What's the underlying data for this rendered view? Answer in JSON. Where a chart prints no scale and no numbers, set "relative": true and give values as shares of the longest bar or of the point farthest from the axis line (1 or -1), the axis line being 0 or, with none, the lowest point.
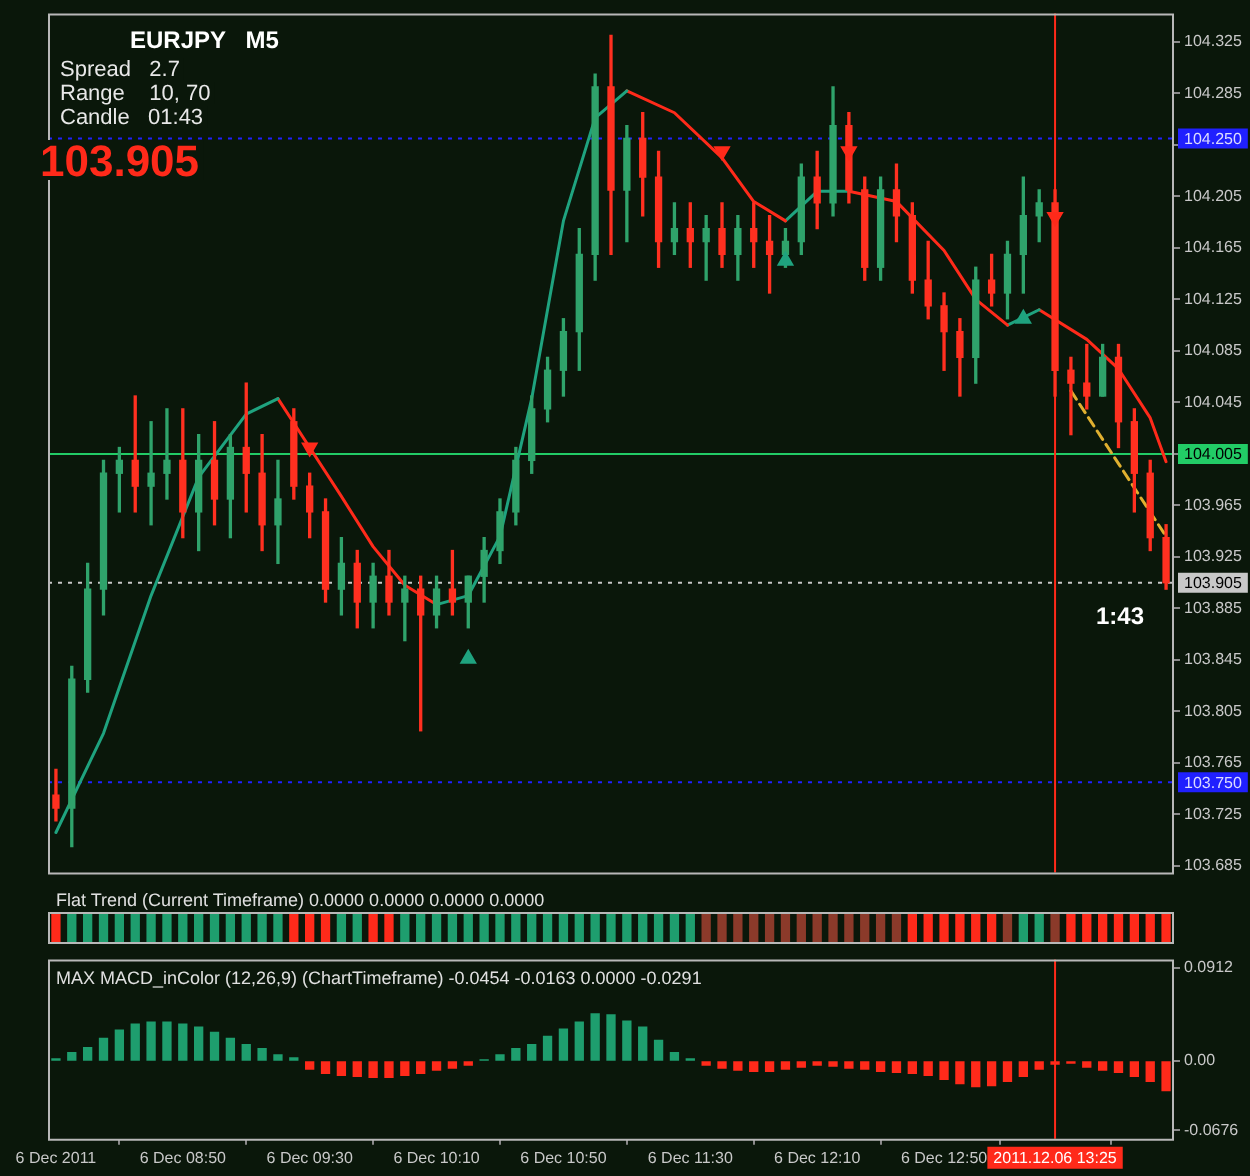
{
  "chart_data": [
    {
      "type": "candlestick",
      "title": "EURJPY   M5",
      "annotations": [
        "Spread   2.7",
        "Range    10, 70",
        "Candle   01:43",
        "103.905",
        "1:43"
      ],
      "categories": [
        "6 Dec 2011",
        null,
        null,
        null,
        null,
        null,
        null,
        null,
        "6 Dec 08:50",
        null,
        null,
        null,
        null,
        null,
        null,
        null,
        "6 Dec 09:30",
        null,
        null,
        null,
        null,
        null,
        null,
        null,
        "6 Dec 10:10",
        null,
        null,
        null,
        null,
        null,
        null,
        null,
        "6 Dec 10:50",
        null,
        null,
        null,
        null,
        null,
        null,
        null,
        "6 Dec 11:30",
        null,
        null,
        null,
        null,
        null,
        null,
        null,
        "6 Dec 12:10",
        null,
        null,
        null,
        null,
        null,
        null,
        null,
        "6 Dec 12:50",
        null,
        null,
        null,
        null,
        null,
        null,
        "2011.12.06 13:25",
        null,
        null,
        null,
        null,
        null,
        null,
        null
      ],
      "ohlc": [
        [
          103.74,
          103.76,
          103.72,
          103.73
        ],
        [
          103.73,
          103.84,
          103.7,
          103.83
        ],
        [
          103.83,
          103.92,
          103.82,
          103.9
        ],
        [
          103.9,
          104.0,
          103.88,
          103.99
        ],
        [
          103.99,
          104.01,
          103.96,
          104.0
        ],
        [
          104.0,
          104.05,
          103.96,
          103.98
        ],
        [
          103.98,
          104.03,
          103.95,
          103.99
        ],
        [
          103.99,
          104.04,
          103.97,
          104.0
        ],
        [
          104.0,
          104.04,
          103.94,
          103.96
        ],
        [
          103.96,
          104.02,
          103.93,
          104.0
        ],
        [
          104.0,
          104.03,
          103.95,
          103.97
        ],
        [
          103.97,
          104.02,
          103.94,
          104.01
        ],
        [
          104.01,
          104.06,
          103.96,
          103.99
        ],
        [
          103.99,
          104.02,
          103.93,
          103.95
        ],
        [
          103.95,
          104.0,
          103.92,
          103.97
        ],
        [
          104.03,
          104.04,
          103.97,
          103.98
        ],
        [
          103.98,
          103.99,
          103.94,
          103.96
        ],
        [
          103.96,
          103.97,
          103.89,
          103.9
        ],
        [
          103.9,
          103.94,
          103.88,
          103.92
        ],
        [
          103.92,
          103.93,
          103.87,
          103.89
        ],
        [
          103.89,
          103.92,
          103.87,
          103.91
        ],
        [
          103.91,
          103.93,
          103.88,
          103.89
        ],
        [
          103.89,
          103.91,
          103.86,
          103.9
        ],
        [
          103.9,
          103.91,
          103.79,
          103.88
        ],
        [
          103.88,
          103.91,
          103.87,
          103.9
        ],
        [
          103.9,
          103.93,
          103.88,
          103.89
        ],
        [
          103.89,
          103.91,
          103.87,
          103.91
        ],
        [
          103.91,
          103.94,
          103.89,
          103.93
        ],
        [
          103.93,
          103.97,
          103.92,
          103.96
        ],
        [
          103.96,
          104.01,
          103.95,
          104.0
        ],
        [
          104.0,
          104.05,
          103.99,
          104.04
        ],
        [
          104.04,
          104.08,
          104.03,
          104.07
        ],
        [
          104.07,
          104.11,
          104.05,
          104.1
        ],
        [
          104.1,
          104.18,
          104.07,
          104.16
        ],
        [
          104.16,
          104.3,
          104.14,
          104.29
        ],
        [
          104.29,
          104.33,
          104.16,
          104.21
        ],
        [
          104.21,
          104.26,
          104.17,
          104.25
        ],
        [
          104.25,
          104.27,
          104.19,
          104.22
        ],
        [
          104.22,
          104.24,
          104.15,
          104.17
        ],
        [
          104.17,
          104.2,
          104.16,
          104.18
        ],
        [
          104.18,
          104.2,
          104.15,
          104.17
        ],
        [
          104.17,
          104.19,
          104.14,
          104.18
        ],
        [
          104.18,
          104.2,
          104.15,
          104.16
        ],
        [
          104.16,
          104.19,
          104.14,
          104.18
        ],
        [
          104.18,
          104.2,
          104.15,
          104.17
        ],
        [
          104.17,
          104.19,
          104.13,
          104.16
        ],
        [
          104.16,
          104.18,
          104.15,
          104.17
        ],
        [
          104.17,
          104.23,
          104.16,
          104.22
        ],
        [
          104.22,
          104.24,
          104.18,
          104.2
        ],
        [
          104.2,
          104.29,
          104.19,
          104.26
        ],
        [
          104.26,
          104.27,
          104.2,
          104.21
        ],
        [
          104.21,
          104.22,
          104.14,
          104.15
        ],
        [
          104.15,
          104.22,
          104.14,
          104.21
        ],
        [
          104.21,
          104.23,
          104.17,
          104.19
        ],
        [
          104.19,
          104.2,
          104.13,
          104.14
        ],
        [
          104.14,
          104.17,
          104.11,
          104.12
        ],
        [
          104.12,
          104.13,
          104.07,
          104.1
        ],
        [
          104.1,
          104.11,
          104.05,
          104.08
        ],
        [
          104.08,
          104.15,
          104.06,
          104.14
        ],
        [
          104.14,
          104.16,
          104.12,
          104.13
        ],
        [
          104.13,
          104.17,
          104.11,
          104.16
        ],
        [
          104.16,
          104.22,
          104.13,
          104.19
        ],
        [
          104.19,
          104.21,
          104.17,
          104.2
        ],
        [
          104.2,
          104.21,
          104.05,
          104.07
        ],
        [
          104.07,
          104.08,
          104.02,
          104.06
        ],
        [
          104.06,
          104.09,
          104.04,
          104.05
        ],
        [
          104.05,
          104.09,
          104.05,
          104.08
        ],
        [
          104.08,
          104.09,
          104.01,
          104.03
        ],
        [
          104.03,
          104.04,
          103.96,
          103.99
        ],
        [
          103.99,
          104.0,
          103.93,
          103.94
        ],
        [
          103.94,
          103.95,
          103.9,
          103.905
        ]
      ],
      "colors": [
        "#ff3020",
        "#2fa36b",
        "#2fa36b",
        "#2fa36b",
        "#2fa36b",
        "#ff3020",
        "#2fa36b",
        "#2fa36b",
        "#ff3020",
        "#2fa36b",
        "#ff3020",
        "#2fa36b",
        "#ff3020",
        "#ff3020",
        "#2fa36b",
        "#ff3020",
        "#ff3020",
        "#ff3020",
        "#2fa36b",
        "#ff3020",
        "#2fa36b",
        "#ff3020",
        "#2fa36b",
        "#ff3020",
        "#2fa36b",
        "#ff3020",
        "#2fa36b",
        "#2fa36b",
        "#2fa36b",
        "#2fa36b",
        "#2fa36b",
        "#2fa36b",
        "#2fa36b",
        "#2fa36b",
        "#2fa36b",
        "#ff3020",
        "#2fa36b",
        "#ff3020",
        "#ff3020",
        "#2fa36b",
        "#ff3020",
        "#2fa36b",
        "#ff3020",
        "#2fa36b",
        "#ff3020",
        "#ff3020",
        "#2fa36b",
        "#2fa36b",
        "#ff3020",
        "#2fa36b",
        "#ff3020",
        "#ff3020",
        "#2fa36b",
        "#ff3020",
        "#ff3020",
        "#ff3020",
        "#ff3020",
        "#ff3020",
        "#2fa36b",
        "#ff3020",
        "#2fa36b",
        "#2fa36b",
        "#2fa36b",
        "#ff3020",
        "#ff3020",
        "#ff3020",
        "#2fa36b",
        "#ff3020",
        "#ff3020",
        "#ff3020",
        "#ff3020"
      ],
      "series": [
        {
          "type": "line",
          "color": "#1fa37f",
          "values": [
            103.711,
            null,
            null,
            103.788,
            null,
            null,
            103.895,
            null,
            null,
            103.987,
            null,
            null,
            104.036,
            null,
            104.048,
            null,
            null,
            null,
            null,
            null,
            null,
            null,
            null,
            null,
            null,
            null,
            null,
            null,
            null,
            null,
            null,
            null,
            null,
            null,
            null,
            null,
            null,
            null,
            null,
            null,
            null,
            null,
            null,
            null,
            null,
            null,
            null,
            null,
            null,
            null,
            null,
            null,
            null,
            null,
            null,
            null,
            null,
            null,
            null,
            null,
            null,
            null,
            null,
            null,
            null,
            null,
            null,
            null,
            null,
            null,
            null
          ]
        },
        {
          "type": "line",
          "color": "#ff2a1a",
          "values": [
            null,
            null,
            null,
            null,
            null,
            null,
            null,
            null,
            null,
            null,
            null,
            null,
            null,
            null,
            104.048,
            null,
            104.01,
            null,
            103.972,
            null,
            103.933,
            null,
            103.903,
            null,
            103.888,
            null,
            null,
            null,
            null,
            null,
            null,
            null,
            null,
            null,
            null,
            null,
            null,
            null,
            null,
            null,
            null,
            null,
            null,
            null,
            null,
            null,
            null,
            null,
            null,
            null,
            null,
            null,
            null,
            null,
            null,
            null,
            null,
            null,
            null,
            null,
            null,
            null,
            null,
            null,
            null,
            null,
            null,
            null,
            null,
            null,
            null
          ]
        },
        {
          "type": "line",
          "color": "#1fa37f",
          "values": [
            null,
            null,
            null,
            null,
            null,
            null,
            null,
            null,
            null,
            null,
            null,
            null,
            null,
            null,
            null,
            null,
            null,
            null,
            null,
            null,
            null,
            null,
            null,
            null,
            103.888,
            null,
            103.895,
            null,
            103.941,
            null,
            104.048,
            null,
            104.186,
            null,
            104.266,
            null,
            104.287,
            null,
            null,
            null,
            null,
            null,
            null,
            null,
            null,
            null,
            null,
            null,
            null,
            null,
            null,
            null,
            null,
            null,
            null,
            null,
            null,
            null,
            null,
            null,
            null,
            null,
            null,
            null,
            null,
            null,
            null,
            null,
            null,
            null,
            null
          ]
        },
        {
          "type": "line",
          "color": "#ff2a1a",
          "values": [
            null,
            null,
            null,
            null,
            null,
            null,
            null,
            null,
            null,
            null,
            null,
            null,
            null,
            null,
            null,
            null,
            null,
            null,
            null,
            null,
            null,
            null,
            null,
            null,
            null,
            null,
            null,
            null,
            null,
            null,
            null,
            null,
            null,
            null,
            null,
            null,
            104.287,
            null,
            null,
            104.27,
            null,
            null,
            104.235,
            null,
            104.201,
            null,
            104.186,
            null,
            null,
            null,
            null,
            null,
            null,
            null,
            null,
            null,
            null,
            null,
            null,
            null,
            null,
            null,
            null,
            null,
            null,
            null,
            null,
            null,
            null,
            null,
            null
          ]
        },
        {
          "type": "line",
          "color": "#1fa37f",
          "values": [
            null,
            null,
            null,
            null,
            null,
            null,
            null,
            null,
            null,
            null,
            null,
            null,
            null,
            null,
            null,
            null,
            null,
            null,
            null,
            null,
            null,
            null,
            null,
            null,
            null,
            null,
            null,
            null,
            null,
            null,
            null,
            null,
            null,
            null,
            null,
            null,
            null,
            null,
            null,
            null,
            null,
            null,
            null,
            null,
            null,
            null,
            104.186,
            null,
            104.209,
            null,
            104.209,
            null,
            null,
            null,
            null,
            null,
            null,
            null,
            null,
            null,
            null,
            null,
            null,
            null,
            null,
            null,
            null,
            null,
            null,
            null,
            null
          ]
        },
        {
          "type": "line",
          "color": "#ff2a1a",
          "values": [
            null,
            null,
            null,
            null,
            null,
            null,
            null,
            null,
            null,
            null,
            null,
            null,
            null,
            null,
            null,
            null,
            null,
            null,
            null,
            null,
            null,
            null,
            null,
            null,
            null,
            null,
            null,
            null,
            null,
            null,
            null,
            null,
            null,
            null,
            null,
            null,
            null,
            null,
            null,
            null,
            null,
            null,
            null,
            null,
            null,
            null,
            null,
            null,
            null,
            null,
            104.209,
            null,
            null,
            104.201,
            null,
            null,
            104.163,
            null,
            104.125,
            null,
            104.105,
            null,
            null,
            null,
            null,
            null,
            null,
            null,
            null,
            null,
            null
          ]
        },
        {
          "type": "line",
          "color": "#1fa37f",
          "values": [
            null,
            null,
            null,
            null,
            null,
            null,
            null,
            null,
            null,
            null,
            null,
            null,
            null,
            null,
            null,
            null,
            null,
            null,
            null,
            null,
            null,
            null,
            null,
            null,
            null,
            null,
            null,
            null,
            null,
            null,
            null,
            null,
            null,
            null,
            null,
            null,
            null,
            null,
            null,
            null,
            null,
            null,
            null,
            null,
            null,
            null,
            null,
            null,
            null,
            null,
            null,
            null,
            null,
            null,
            null,
            null,
            null,
            null,
            null,
            null,
            104.105,
            null,
            104.117,
            null,
            null,
            null,
            null,
            null,
            null,
            null,
            null
          ]
        },
        {
          "type": "line",
          "color": "#ff2a1a",
          "values": [
            null,
            null,
            null,
            null,
            null,
            null,
            null,
            null,
            null,
            null,
            null,
            null,
            null,
            null,
            null,
            null,
            null,
            null,
            null,
            null,
            null,
            null,
            null,
            null,
            null,
            null,
            null,
            null,
            null,
            null,
            null,
            null,
            null,
            null,
            null,
            null,
            null,
            null,
            null,
            null,
            null,
            null,
            null,
            null,
            null,
            null,
            null,
            null,
            null,
            null,
            null,
            null,
            null,
            null,
            null,
            null,
            null,
            null,
            null,
            null,
            null,
            null,
            104.117,
            null,
            null,
            104.094,
            null,
            104.071,
            null,
            104.033,
            103.999
          ]
        },
        {
          "type": "scatter",
          "color": "#ff2a1a",
          "marker": "triangle",
          "values": [
            null,
            null,
            null,
            null,
            null,
            null,
            null,
            null,
            null,
            null,
            null,
            null,
            null,
            null,
            null,
            null,
            104.01,
            null,
            null,
            null,
            null,
            null,
            null,
            null,
            null,
            null,
            null,
            null,
            null,
            null,
            null,
            null,
            null,
            null,
            null,
            null,
            null,
            null,
            null,
            null,
            null,
            null,
            104.24,
            null,
            null,
            null,
            null,
            null,
            null,
            null,
            104.24,
            null,
            null,
            null,
            null,
            null,
            null,
            null,
            null,
            null,
            null,
            null,
            null,
            104.189,
            null,
            null,
            null,
            null,
            null,
            null,
            null
          ]
        },
        {
          "type": "scatter",
          "color": "#1fa37f",
          "marker": "triangle",
          "values": [
            null,
            null,
            null,
            null,
            null,
            null,
            null,
            null,
            null,
            null,
            null,
            null,
            null,
            null,
            null,
            null,
            null,
            null,
            null,
            null,
            null,
            null,
            null,
            null,
            null,
            null,
            103.846,
            null,
            null,
            null,
            null,
            null,
            null,
            null,
            null,
            null,
            null,
            null,
            null,
            null,
            null,
            null,
            null,
            null,
            null,
            null,
            104.155,
            null,
            null,
            null,
            null,
            null,
            null,
            null,
            null,
            null,
            null,
            null,
            null,
            null,
            null,
            104.11,
            null,
            null,
            null,
            null,
            null,
            null,
            null,
            null,
            null
          ]
        },
        {
          "type": "line",
          "color": "#e0b030",
          "line_style": "dashed",
          "values": [
            null,
            null,
            null,
            null,
            null,
            null,
            null,
            null,
            null,
            null,
            null,
            null,
            null,
            null,
            null,
            null,
            null,
            null,
            null,
            null,
            null,
            null,
            null,
            null,
            null,
            null,
            null,
            null,
            null,
            null,
            null,
            null,
            null,
            null,
            null,
            null,
            null,
            null,
            null,
            null,
            null,
            null,
            null,
            null,
            null,
            null,
            null,
            null,
            null,
            null,
            null,
            null,
            null,
            null,
            null,
            null,
            null,
            null,
            null,
            null,
            null,
            null,
            null,
            null,
            104.054,
            null,
            null,
            null,
            null,
            null,
            103.941
          ]
        }
      ],
      "ylim": [
        103.68,
        104.347
      ],
      "yticks": [
        104.325,
        104.285,
        {
          "value": 104.245,
          "label": null
        },
        104.205,
        104.165,
        104.125,
        104.085,
        104.045,
        {
          "value": 104.005,
          "label": null
        },
        103.965,
        103.925,
        103.885,
        103.845,
        103.805,
        103.765,
        103.725,
        103.685
      ],
      "tick_labels": "y",
      "grid": false,
      "legend": false,
      "ref_lines": [
        {
          "axis": "y",
          "value": 104.25,
          "label": "104.250",
          "color": "#2020ff",
          "line_style": "dotted"
        },
        {
          "axis": "y",
          "value": 104.005,
          "label": "104.005",
          "color": "#22cc66",
          "line_style": "solid"
        },
        {
          "axis": "y",
          "value": 103.905,
          "label": "103.905",
          "color": "#c8c8c8",
          "line_style": "dotted"
        },
        {
          "axis": "y",
          "value": 103.75,
          "label": "103.750",
          "color": "#2020ff",
          "line_style": "dotted"
        },
        {
          "axis": "x",
          "value": "2011.12.06 13:25",
          "color": "#ff2a1a",
          "line_style": "solid"
        }
      ]
    },
    {
      "type": "bar",
      "title": "Flat Trend (Current Timeframe) 0.0000 0.0000 0.0000 0.0000",
      "relative": true,
      "categories": [
        "6 Dec 2011",
        null,
        null,
        null,
        null,
        null,
        null,
        null,
        "6 Dec 08:50",
        null,
        null,
        null,
        null,
        null,
        null,
        null,
        "6 Dec 09:30",
        null,
        null,
        null,
        null,
        null,
        null,
        null,
        "6 Dec 10:10",
        null,
        null,
        null,
        null,
        null,
        null,
        null,
        "6 Dec 10:50",
        null,
        null,
        null,
        null,
        null,
        null,
        null,
        "6 Dec 11:30",
        null,
        null,
        null,
        null,
        null,
        null,
        null,
        "6 Dec 12:10",
        null,
        null,
        null,
        null,
        null,
        null,
        null,
        "6 Dec 12:50",
        null,
        null,
        null,
        null,
        null,
        null,
        "2011.12.06 13:25",
        null,
        null,
        null,
        null,
        null,
        null,
        null
      ],
      "values": [
        1,
        1,
        1,
        1,
        1,
        1,
        1,
        1,
        1,
        1,
        1,
        1,
        1,
        1,
        1,
        1,
        1,
        1,
        1,
        1,
        1,
        1,
        1,
        1,
        1,
        1,
        1,
        1,
        1,
        1,
        1,
        1,
        1,
        1,
        1,
        1,
        1,
        1,
        1,
        1,
        1,
        1,
        1,
        1,
        1,
        1,
        1,
        1,
        1,
        1,
        1,
        1,
        1,
        1,
        1,
        1,
        1,
        1,
        1,
        1,
        1,
        1,
        1,
        1,
        1,
        1,
        1,
        1,
        1,
        1,
        1
      ],
      "colors": [
        "#ff2a1a",
        "#1e9e6e",
        "#1e9e6e",
        "#1e9e6e",
        "#1e9e6e",
        "#1e9e6e",
        "#1e9e6e",
        "#1e9e6e",
        "#1e9e6e",
        "#1e9e6e",
        "#1e9e6e",
        "#1e9e6e",
        "#1e9e6e",
        "#1e9e6e",
        "#1e9e6e",
        "#ff2a1a",
        "#ff2a1a",
        "#ff2a1a",
        "#1e9e6e",
        "#1e9e6e",
        "#ff2a1a",
        "#ff2a1a",
        "#1e9e6e",
        "#1e9e6e",
        "#1e9e6e",
        "#1e9e6e",
        "#1e9e6e",
        "#1e9e6e",
        "#1e9e6e",
        "#1e9e6e",
        "#1e9e6e",
        "#1e9e6e",
        "#1e9e6e",
        "#1e9e6e",
        "#1e9e6e",
        "#1e9e6e",
        "#1e9e6e",
        "#1e9e6e",
        "#1e9e6e",
        "#1e9e6e",
        "#1e9e6e",
        "#8b3a2a",
        "#8b3a2a",
        "#8b3a2a",
        "#8b3a2a",
        "#8b3a2a",
        "#8b3a2a",
        "#8b3a2a",
        "#8b3a2a",
        "#8b3a2a",
        "#8b3a2a",
        "#8b3a2a",
        "#8b3a2a",
        "#8b3a2a",
        "#ff2a1a",
        "#ff2a1a",
        "#ff2a1a",
        "#ff2a1a",
        "#ff2a1a",
        "#ff2a1a",
        "#8b3a2a",
        "#1e9e6e",
        "#1e9e6e",
        "#8b3a2a",
        "#ff2a1a",
        "#ff2a1a",
        "#ff2a1a",
        "#ff2a1a",
        "#ff2a1a",
        "#ff2a1a",
        "#ff2a1a"
      ],
      "tick_labels": false,
      "grid": false,
      "legend": false
    },
    {
      "type": "bar",
      "title": "MAX MACD_inColor (12,26,9) (ChartTimeframe) -0.0454 -0.0163 0.0000 -0.0291",
      "categories": [
        "6 Dec 2011",
        null,
        null,
        null,
        null,
        null,
        null,
        null,
        "6 Dec 08:50",
        null,
        null,
        null,
        null,
        null,
        null,
        null,
        "6 Dec 09:30",
        null,
        null,
        null,
        null,
        null,
        null,
        null,
        "6 Dec 10:10",
        null,
        null,
        null,
        null,
        null,
        null,
        null,
        "6 Dec 10:50",
        null,
        null,
        null,
        null,
        null,
        null,
        null,
        "6 Dec 11:30",
        null,
        null,
        null,
        null,
        null,
        null,
        null,
        "6 Dec 12:10",
        null,
        null,
        null,
        null,
        null,
        null,
        null,
        "6 Dec 12:50",
        null,
        null,
        null,
        null,
        null,
        null,
        "2011.12.06 13:25",
        null,
        null,
        null,
        null,
        null,
        null,
        null
      ],
      "values": [
        0.002,
        0.008,
        0.013,
        0.022,
        0.03,
        0.036,
        0.038,
        0.038,
        0.036,
        0.033,
        0.028,
        0.022,
        0.016,
        0.012,
        0.006,
        0.003,
        -0.008,
        -0.012,
        -0.014,
        -0.015,
        -0.016,
        -0.016,
        -0.014,
        -0.012,
        -0.009,
        -0.007,
        -0.004,
        0.001,
        0.006,
        0.012,
        0.016,
        0.024,
        0.031,
        0.038,
        0.046,
        0.045,
        0.039,
        0.033,
        0.02,
        0.008,
        0.002,
        -0.004,
        -0.007,
        -0.009,
        -0.01,
        -0.01,
        -0.008,
        -0.006,
        -0.004,
        -0.005,
        -0.007,
        -0.008,
        -0.01,
        -0.011,
        -0.012,
        -0.014,
        -0.018,
        -0.022,
        -0.025,
        -0.024,
        -0.02,
        -0.015,
        -0.008,
        -0.003,
        -0.002,
        -0.006,
        -0.009,
        -0.011,
        -0.015,
        -0.02,
        -0.029
      ],
      "colors": [
        "#1e9e6e",
        "#1e9e6e",
        "#1e9e6e",
        "#1e9e6e",
        "#1e9e6e",
        "#1e9e6e",
        "#1e9e6e",
        "#1e9e6e",
        "#1e9e6e",
        "#1e9e6e",
        "#1e9e6e",
        "#1e9e6e",
        "#1e9e6e",
        "#1e9e6e",
        "#1e9e6e",
        "#1e9e6e",
        "#ff2a1a",
        "#ff2a1a",
        "#ff2a1a",
        "#ff2a1a",
        "#ff2a1a",
        "#ff2a1a",
        "#ff2a1a",
        "#ff2a1a",
        "#ff2a1a",
        "#ff2a1a",
        "#ff2a1a",
        "#1e9e6e",
        "#1e9e6e",
        "#1e9e6e",
        "#1e9e6e",
        "#1e9e6e",
        "#1e9e6e",
        "#1e9e6e",
        "#1e9e6e",
        "#1e9e6e",
        "#1e9e6e",
        "#1e9e6e",
        "#1e9e6e",
        "#1e9e6e",
        "#1e9e6e",
        "#ff2a1a",
        "#ff2a1a",
        "#ff2a1a",
        "#ff2a1a",
        "#ff2a1a",
        "#ff2a1a",
        "#ff2a1a",
        "#ff2a1a",
        "#ff2a1a",
        "#ff2a1a",
        "#ff2a1a",
        "#ff2a1a",
        "#ff2a1a",
        "#ff2a1a",
        "#ff2a1a",
        "#ff2a1a",
        "#ff2a1a",
        "#ff2a1a",
        "#ff2a1a",
        "#ff2a1a",
        "#ff2a1a",
        "#ff2a1a",
        "#ff2a1a",
        "#ff2a1a",
        "#ff2a1a",
        "#ff2a1a",
        "#ff2a1a",
        "#ff2a1a",
        "#ff2a1a",
        "#ff2a1a"
      ],
      "ylim": [
        -0.076,
        0.099
      ],
      "yticks": [
        0.0912,
        {
          "value": 0,
          "label": "0.00"
        },
        -0.0676
      ],
      "grid": false,
      "legend": false,
      "ref_lines": [
        {
          "axis": "x",
          "value": "2011.12.06 13:25",
          "color": "#ff2a1a",
          "line_style": "solid"
        }
      ]
    }
  ]
}
